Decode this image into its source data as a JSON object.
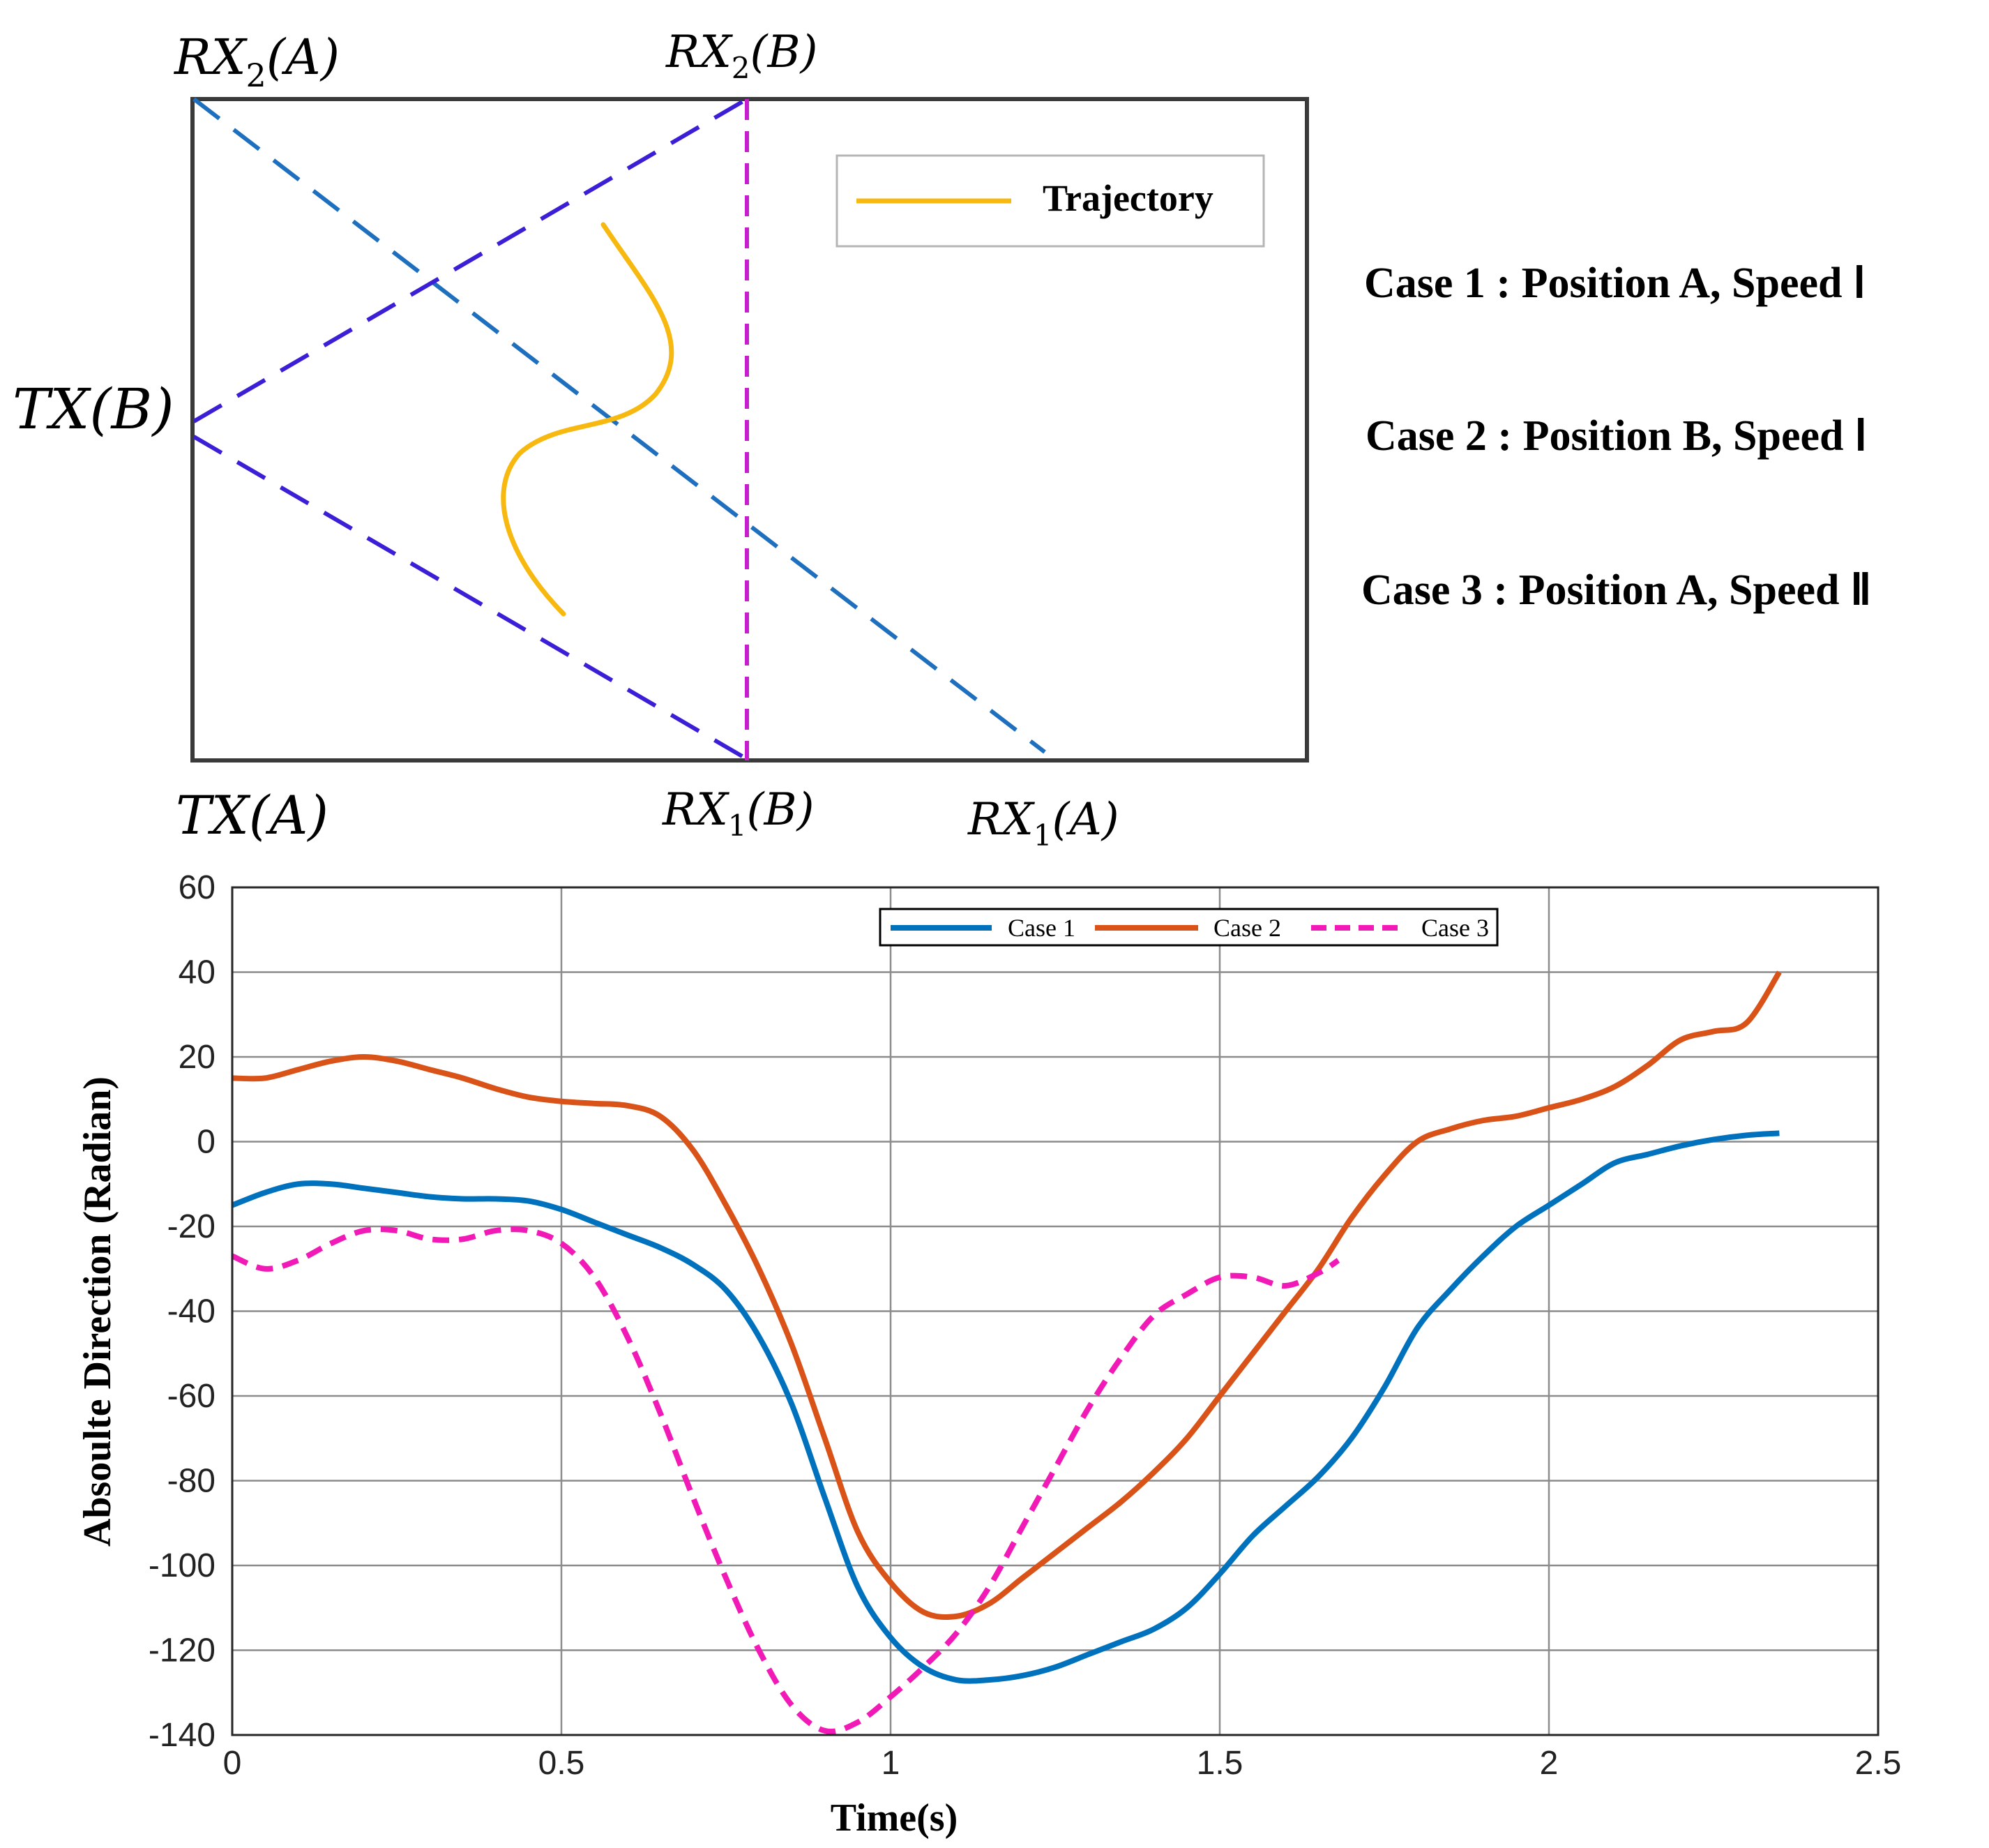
{
  "diagram": {
    "labels": {
      "rx2a_main": "RX",
      "rx2a_sub": "2",
      "rx2a_arg": "(A)",
      "rx2b_main": "RX",
      "rx2b_sub": "2",
      "rx2b_arg": "(B)",
      "txb": "TX(B)",
      "txa": "TX(A)",
      "rx1b_main": "RX",
      "rx1b_sub": "1",
      "rx1b_arg": "(B)",
      "rx1a_main": "RX",
      "rx1a_sub": "1",
      "rx1a_arg": "(A)"
    },
    "legend_label": "Trajectory",
    "colors": {
      "frame": "#3a3a3a",
      "position_a": "#1f6fbf",
      "position_b": "#3b1fd6",
      "rx_vertical": "#c71fcf",
      "trajectory": "#f7b90f"
    }
  },
  "cases": [
    "Case 1 : Position A, Speed Ⅰ",
    "Case 2 : Position B, Speed Ⅰ",
    "Case 3 : Position A, Speed Ⅱ"
  ],
  "chart_data": {
    "type": "line",
    "title": "",
    "xlabel": "Time(s)",
    "ylabel": "Absoulte Direction (Radian)",
    "xlim": [
      0,
      2.5
    ],
    "ylim": [
      -140,
      60
    ],
    "xticks": [
      0,
      0.5,
      1,
      1.5,
      2,
      2.5
    ],
    "xtick_labels": [
      "0",
      "0.5",
      "1",
      "1.5",
      "2",
      "2.5"
    ],
    "yticks": [
      60,
      40,
      20,
      0,
      -20,
      -40,
      -60,
      -80,
      -100,
      -120,
      -140
    ],
    "ytick_labels": [
      "60",
      "40",
      "20",
      "0",
      "-20",
      "-40",
      "-60",
      "-80",
      "-100",
      "-120",
      "-140"
    ],
    "grid": true,
    "legend_position": "top-center",
    "series": [
      {
        "name": "Case 1",
        "color": "#0072bd",
        "style": "solid",
        "x": [
          0,
          0.05,
          0.1,
          0.15,
          0.2,
          0.25,
          0.3,
          0.35,
          0.4,
          0.45,
          0.5,
          0.55,
          0.6,
          0.65,
          0.7,
          0.75,
          0.8,
          0.85,
          0.9,
          0.95,
          1.0,
          1.05,
          1.1,
          1.15,
          1.2,
          1.25,
          1.3,
          1.35,
          1.4,
          1.45,
          1.5,
          1.55,
          1.6,
          1.65,
          1.7,
          1.75,
          1.8,
          1.85,
          1.9,
          1.95,
          2.0,
          2.05,
          2.1,
          2.15,
          2.2,
          2.25,
          2.3,
          2.35
        ],
        "y": [
          -15,
          -12,
          -10,
          -10,
          -11,
          -12,
          -13,
          -13.5,
          -13.5,
          -14,
          -16,
          -19,
          -22,
          -25,
          -29,
          -35,
          -46,
          -62,
          -84,
          -105,
          -117,
          -124,
          -127,
          -127,
          -126,
          -124,
          -121,
          -118,
          -115,
          -110,
          -102,
          -93,
          -86,
          -79,
          -70,
          -58,
          -44,
          -35,
          -27,
          -20,
          -15,
          -10,
          -5,
          -3,
          -1,
          0.5,
          1.5,
          2
        ]
      },
      {
        "name": "Case 2",
        "color": "#d95319",
        "style": "solid",
        "x": [
          0,
          0.05,
          0.1,
          0.15,
          0.2,
          0.25,
          0.3,
          0.35,
          0.4,
          0.45,
          0.5,
          0.55,
          0.6,
          0.65,
          0.7,
          0.75,
          0.8,
          0.85,
          0.9,
          0.95,
          1.0,
          1.05,
          1.1,
          1.15,
          1.2,
          1.25,
          1.3,
          1.35,
          1.4,
          1.45,
          1.5,
          1.55,
          1.6,
          1.65,
          1.7,
          1.75,
          1.8,
          1.85,
          1.9,
          1.95,
          2.0,
          2.05,
          2.1,
          2.15,
          2.2,
          2.25,
          2.3,
          2.35
        ],
        "y": [
          15,
          15,
          17,
          19,
          20,
          19,
          17,
          15,
          12.5,
          10.5,
          9.5,
          9,
          8.5,
          6,
          -2,
          -15,
          -30,
          -48,
          -70,
          -92,
          -104,
          -111,
          -112,
          -109,
          -103,
          -97,
          -91,
          -85,
          -78,
          -70,
          -60,
          -50,
          -40,
          -30,
          -18,
          -8,
          0,
          3,
          5,
          6,
          8,
          10,
          13,
          18,
          24,
          26,
          28,
          40
        ]
      },
      {
        "name": "Case 3",
        "color": "#f21ab6",
        "style": "dashed",
        "x": [
          0,
          0.05,
          0.1,
          0.15,
          0.2,
          0.25,
          0.3,
          0.35,
          0.4,
          0.45,
          0.5,
          0.55,
          0.6,
          0.65,
          0.7,
          0.75,
          0.8,
          0.85,
          0.9,
          0.95,
          1.0,
          1.05,
          1.1,
          1.15,
          1.2,
          1.25,
          1.3,
          1.35,
          1.4,
          1.45,
          1.5,
          1.55,
          1.6,
          1.65,
          1.68
        ],
        "y": [
          -27,
          -30,
          -28,
          -24,
          -21,
          -21,
          -23,
          -23,
          -21,
          -21,
          -24,
          -32,
          -46,
          -64,
          -84,
          -103,
          -120,
          -133,
          -139,
          -137,
          -131,
          -124,
          -116,
          -105,
          -91,
          -77,
          -63,
          -51,
          -41,
          -36,
          -32,
          -32,
          -34,
          -31,
          -28
        ]
      }
    ]
  }
}
